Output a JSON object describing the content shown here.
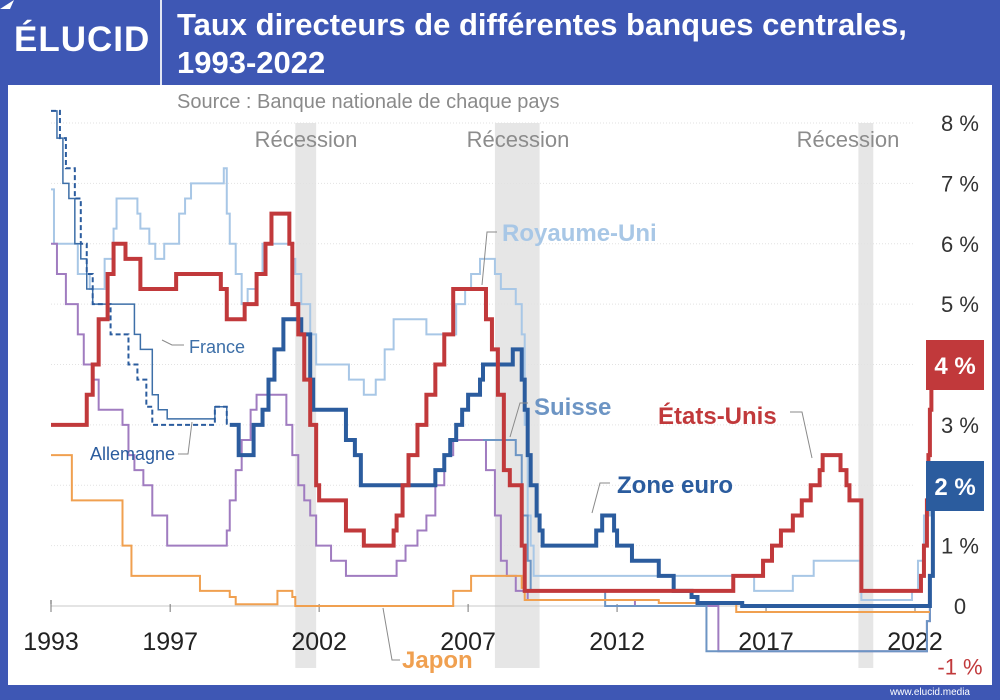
{
  "header": {
    "logo": "ÉLUCID",
    "title_line1": "Taux directeurs de différentes banques centrales,",
    "title_line2": "1993-2022",
    "source": "Source : Banque nationale de chaque pays"
  },
  "footer": {
    "url": "www.elucid.media"
  },
  "colors": {
    "etats_unis": "#c1393b",
    "zone_euro": "#2b5c9e",
    "suisse": "#6d95c4",
    "royaume_uni": "#a8c7e6",
    "japon": "#f0a050",
    "allemagne": "#2b5c9e",
    "france": "#3d6fa8",
    "purple": "#a07cc0",
    "recession": "#e6e6e6"
  },
  "chart_data": {
    "type": "line",
    "title": "Taux directeurs de différentes banques centrales, 1993-2022",
    "subtitle": "Source : Banque nationale de chaque pays",
    "xlim": [
      1993,
      2022.5
    ],
    "ylim": [
      -1,
      8
    ],
    "x_ticks": [
      "1993",
      "1997",
      "2002",
      "2007",
      "2012",
      "2017",
      "2022"
    ],
    "x_tick_values": [
      1993,
      1997,
      2002,
      2007,
      2012,
      2017,
      2022
    ],
    "y_ticks": [
      "8 %",
      "7 %",
      "6 %",
      "5 %",
      "4 %",
      "3 %",
      "2 %",
      "1 %",
      "0",
      "-1 %"
    ],
    "y_tick_values": [
      8,
      7,
      6,
      5,
      4,
      3,
      2,
      1,
      0,
      -1
    ],
    "recessions": [
      {
        "label": "Récession",
        "start": 2001.2,
        "end": 2001.9
      },
      {
        "label": "Récession",
        "start": 2007.9,
        "end": 2009.4
      },
      {
        "label": "Récession",
        "start": 2020.1,
        "end": 2020.6
      }
    ],
    "end_badges": [
      {
        "label": "4 %",
        "value": 4,
        "color": "#c1393b"
      },
      {
        "label": "2 %",
        "value": 2,
        "color": "#2b5c9e"
      }
    ],
    "series": [
      {
        "name": "Royaume-Uni",
        "key": "royaume_uni",
        "label_x": 2008.2,
        "label_y": 6.2,
        "points": [
          [
            1993,
            6.9
          ],
          [
            1993.1,
            6.0
          ],
          [
            1993.9,
            5.5
          ],
          [
            1994.3,
            5.25
          ],
          [
            1994.8,
            5.75
          ],
          [
            1995.1,
            6.25
          ],
          [
            1995.2,
            6.75
          ],
          [
            1995.9,
            6.5
          ],
          [
            1996.0,
            6.25
          ],
          [
            1996.3,
            6.0
          ],
          [
            1996.5,
            5.75
          ],
          [
            1996.8,
            6.0
          ],
          [
            1997.3,
            6.5
          ],
          [
            1997.5,
            6.75
          ],
          [
            1997.7,
            7.0
          ],
          [
            1998.8,
            7.25
          ],
          [
            1998.9,
            6.5
          ],
          [
            1999.0,
            6.0
          ],
          [
            1999.2,
            5.5
          ],
          [
            1999.4,
            5.0
          ],
          [
            1999.6,
            5.25
          ],
          [
            1999.9,
            5.5
          ],
          [
            2000.1,
            6.0
          ],
          [
            2001.1,
            5.75
          ],
          [
            2001.2,
            5.5
          ],
          [
            2001.4,
            5.0
          ],
          [
            2001.7,
            4.5
          ],
          [
            2001.9,
            4.0
          ],
          [
            2003.0,
            3.75
          ],
          [
            2003.5,
            3.5
          ],
          [
            2003.9,
            3.75
          ],
          [
            2004.2,
            4.25
          ],
          [
            2004.5,
            4.75
          ],
          [
            2005.6,
            4.5
          ],
          [
            2006.6,
            5.0
          ],
          [
            2006.9,
            5.25
          ],
          [
            2007.1,
            5.5
          ],
          [
            2007.4,
            5.75
          ],
          [
            2007.9,
            5.5
          ],
          [
            2008.1,
            5.25
          ],
          [
            2008.6,
            5.0
          ],
          [
            2008.8,
            4.5
          ],
          [
            2008.9,
            3.0
          ],
          [
            2009.0,
            1.5
          ],
          [
            2009.1,
            1.0
          ],
          [
            2009.2,
            0.5
          ],
          [
            2016.6,
            0.25
          ],
          [
            2017.9,
            0.5
          ],
          [
            2018.6,
            0.75
          ],
          [
            2020.2,
            0.1
          ],
          [
            2021.9,
            0.25
          ],
          [
            2022.1,
            0.75
          ],
          [
            2022.3,
            1.5
          ],
          [
            2022.5,
            2.25
          ]
        ]
      },
      {
        "name": "États-Unis",
        "key": "etats_unis",
        "label_x": 2018.8,
        "label_y": 3.0,
        "points": [
          [
            1993,
            3.0
          ],
          [
            1994.0,
            3.0
          ],
          [
            1994.2,
            3.5
          ],
          [
            1994.4,
            4.0
          ],
          [
            1994.6,
            4.75
          ],
          [
            1994.9,
            5.5
          ],
          [
            1995.1,
            6.0
          ],
          [
            1995.5,
            5.75
          ],
          [
            1996.0,
            5.25
          ],
          [
            1997.2,
            5.5
          ],
          [
            1998.7,
            5.25
          ],
          [
            1998.9,
            4.75
          ],
          [
            1999.5,
            5.0
          ],
          [
            1999.9,
            5.5
          ],
          [
            2000.2,
            6.0
          ],
          [
            2000.4,
            6.5
          ],
          [
            2001.0,
            6.0
          ],
          [
            2001.1,
            5.0
          ],
          [
            2001.3,
            4.5
          ],
          [
            2001.5,
            3.75
          ],
          [
            2001.7,
            3.0
          ],
          [
            2001.9,
            2.0
          ],
          [
            2002.0,
            1.75
          ],
          [
            2002.9,
            1.25
          ],
          [
            2003.5,
            1.0
          ],
          [
            2004.5,
            1.25
          ],
          [
            2004.6,
            1.5
          ],
          [
            2004.8,
            2.0
          ],
          [
            2005.0,
            2.5
          ],
          [
            2005.3,
            3.0
          ],
          [
            2005.6,
            3.5
          ],
          [
            2005.9,
            4.0
          ],
          [
            2006.2,
            4.5
          ],
          [
            2006.5,
            5.25
          ],
          [
            2007.6,
            4.75
          ],
          [
            2007.8,
            4.25
          ],
          [
            2008.0,
            3.5
          ],
          [
            2008.2,
            2.25
          ],
          [
            2008.4,
            2.0
          ],
          [
            2008.8,
            1.0
          ],
          [
            2008.9,
            0.25
          ],
          [
            2015.9,
            0.5
          ],
          [
            2016.9,
            0.75
          ],
          [
            2017.2,
            1.0
          ],
          [
            2017.5,
            1.25
          ],
          [
            2017.9,
            1.5
          ],
          [
            2018.2,
            1.75
          ],
          [
            2018.5,
            2.0
          ],
          [
            2018.8,
            2.25
          ],
          [
            2018.9,
            2.5
          ],
          [
            2019.5,
            2.25
          ],
          [
            2019.7,
            2.0
          ],
          [
            2019.8,
            1.75
          ],
          [
            2020.2,
            0.25
          ],
          [
            2022.2,
            0.5
          ],
          [
            2022.3,
            1.0
          ],
          [
            2022.4,
            1.75
          ],
          [
            2022.45,
            2.5
          ],
          [
            2022.5,
            3.25
          ],
          [
            2022.55,
            4.0
          ]
        ]
      },
      {
        "name": "Zone euro",
        "key": "zone_euro",
        "label_x": 2011.0,
        "label_y": 2.0,
        "points": [
          [
            1999.0,
            3.0
          ],
          [
            1999.3,
            2.5
          ],
          [
            1999.8,
            3.0
          ],
          [
            2000.1,
            3.25
          ],
          [
            2000.3,
            3.75
          ],
          [
            2000.5,
            4.25
          ],
          [
            2000.8,
            4.75
          ],
          [
            2001.4,
            4.5
          ],
          [
            2001.7,
            3.75
          ],
          [
            2001.8,
            3.25
          ],
          [
            2002.9,
            2.75
          ],
          [
            2003.2,
            2.5
          ],
          [
            2003.4,
            2.0
          ],
          [
            2005.9,
            2.25
          ],
          [
            2006.2,
            2.5
          ],
          [
            2006.4,
            2.75
          ],
          [
            2006.6,
            3.0
          ],
          [
            2006.8,
            3.25
          ],
          [
            2007.0,
            3.5
          ],
          [
            2007.4,
            3.75
          ],
          [
            2007.5,
            4.0
          ],
          [
            2008.5,
            4.25
          ],
          [
            2008.8,
            3.75
          ],
          [
            2008.9,
            3.25
          ],
          [
            2009.0,
            2.5
          ],
          [
            2009.1,
            2.0
          ],
          [
            2009.3,
            1.5
          ],
          [
            2009.4,
            1.25
          ],
          [
            2009.5,
            1.0
          ],
          [
            2011.3,
            1.25
          ],
          [
            2011.5,
            1.5
          ],
          [
            2011.9,
            1.25
          ],
          [
            2012.0,
            1.0
          ],
          [
            2012.5,
            0.75
          ],
          [
            2013.4,
            0.5
          ],
          [
            2013.9,
            0.25
          ],
          [
            2014.5,
            0.15
          ],
          [
            2014.7,
            0.05
          ],
          [
            2016.2,
            0.0
          ],
          [
            2022.5,
            0.5
          ],
          [
            2022.7,
            1.25
          ],
          [
            2022.8,
            2.0
          ]
        ]
      },
      {
        "name": "Suisse",
        "key": "suisse",
        "label_x": 2009.6,
        "label_y": 3.3,
        "points": [
          [
            2007.5,
            2.75
          ],
          [
            2008.6,
            2.5
          ],
          [
            2008.8,
            1.5
          ],
          [
            2009.0,
            0.75
          ],
          [
            2009.1,
            0.25
          ],
          [
            2011.6,
            0.0
          ],
          [
            2015.0,
            -0.75
          ],
          [
            2022.4,
            -0.25
          ],
          [
            2022.5,
            0.5
          ]
        ]
      },
      {
        "name": "Japon",
        "key": "japon",
        "label_x": 2003.8,
        "label_y": -0.8,
        "points": [
          [
            1993,
            2.5
          ],
          [
            1993.3,
            2.5
          ],
          [
            1993.7,
            1.75
          ],
          [
            1995.4,
            1.0
          ],
          [
            1995.7,
            0.5
          ],
          [
            1998.0,
            0.25
          ],
          [
            1999.0,
            0.15
          ],
          [
            1999.2,
            0.03
          ],
          [
            2000.6,
            0.25
          ],
          [
            2001.1,
            0.15
          ],
          [
            2001.2,
            0.0
          ],
          [
            2006.5,
            0.25
          ],
          [
            2007.1,
            0.5
          ],
          [
            2008.8,
            0.3
          ],
          [
            2008.9,
            0.1
          ],
          [
            2013.4,
            0.05
          ],
          [
            2016.0,
            -0.1
          ],
          [
            2022.5,
            -0.1
          ]
        ]
      },
      {
        "name": "Allemagne",
        "key": "allemagne",
        "dashed": true,
        "label_x": 1993.8,
        "label_y": 2.5,
        "points": [
          [
            1993,
            8.25
          ],
          [
            1993.3,
            7.75
          ],
          [
            1993.5,
            7.25
          ],
          [
            1993.8,
            6.75
          ],
          [
            1994.0,
            6.0
          ],
          [
            1994.2,
            5.5
          ],
          [
            1994.4,
            5.0
          ],
          [
            1995.0,
            4.5
          ],
          [
            1995.6,
            4.0
          ],
          [
            1995.9,
            3.75
          ],
          [
            1996.2,
            3.3
          ],
          [
            1996.4,
            3.0
          ],
          [
            1998.5,
            3.3
          ],
          [
            1998.9,
            3.0
          ]
        ]
      },
      {
        "name": "France",
        "key": "france",
        "label_x": 1995.9,
        "label_y": 4.2,
        "points": [
          [
            1993,
            8.5
          ],
          [
            1993.2,
            7.75
          ],
          [
            1993.4,
            7.0
          ],
          [
            1993.6,
            6.75
          ],
          [
            1993.8,
            6.0
          ],
          [
            1994.0,
            5.75
          ],
          [
            1994.2,
            5.25
          ],
          [
            1994.4,
            5.0
          ],
          [
            1995.8,
            4.5
          ],
          [
            1996.0,
            4.25
          ],
          [
            1996.4,
            3.5
          ],
          [
            1996.6,
            3.25
          ],
          [
            1996.9,
            3.1
          ],
          [
            1998.5,
            3.3
          ],
          [
            1998.9,
            3.0
          ]
        ]
      },
      {
        "name": "",
        "key": "purple",
        "points": [
          [
            1993,
            6.0
          ],
          [
            1993.2,
            5.5
          ],
          [
            1993.5,
            5.0
          ],
          [
            1993.9,
            4.5
          ],
          [
            1994.1,
            4.0
          ],
          [
            1994.4,
            3.75
          ],
          [
            1994.6,
            3.25
          ],
          [
            1995.4,
            3.0
          ],
          [
            1995.6,
            2.5
          ],
          [
            1995.8,
            2.25
          ],
          [
            1996.1,
            2.0
          ],
          [
            1996.4,
            1.5
          ],
          [
            1996.9,
            1.0
          ],
          [
            1998.9,
            1.25
          ],
          [
            1999.0,
            1.75
          ],
          [
            1999.2,
            2.25
          ],
          [
            1999.4,
            2.75
          ],
          [
            1999.7,
            3.25
          ],
          [
            1999.9,
            3.5
          ],
          [
            2000.9,
            3.0
          ],
          [
            2001.1,
            2.5
          ],
          [
            2001.3,
            2.0
          ],
          [
            2001.5,
            1.75
          ],
          [
            2001.7,
            1.5
          ],
          [
            2001.9,
            1.0
          ],
          [
            2002.4,
            0.75
          ],
          [
            2002.9,
            0.5
          ],
          [
            2004.6,
            0.75
          ],
          [
            2004.9,
            1.0
          ],
          [
            2005.3,
            1.25
          ],
          [
            2005.6,
            1.5
          ],
          [
            2005.9,
            2.0
          ],
          [
            2006.2,
            2.5
          ],
          [
            2006.5,
            2.75
          ],
          [
            2007.6,
            2.25
          ],
          [
            2007.9,
            1.5
          ],
          [
            2008.1,
            0.75
          ],
          [
            2008.3,
            0.5
          ],
          [
            2008.6,
            0.25
          ],
          [
            2009.0,
            0.1
          ],
          [
            2012.6,
            0.0
          ],
          [
            2015.4,
            -0.75
          ],
          [
            2022.4,
            -0.25
          ],
          [
            2022.5,
            0.25
          ]
        ]
      }
    ]
  }
}
